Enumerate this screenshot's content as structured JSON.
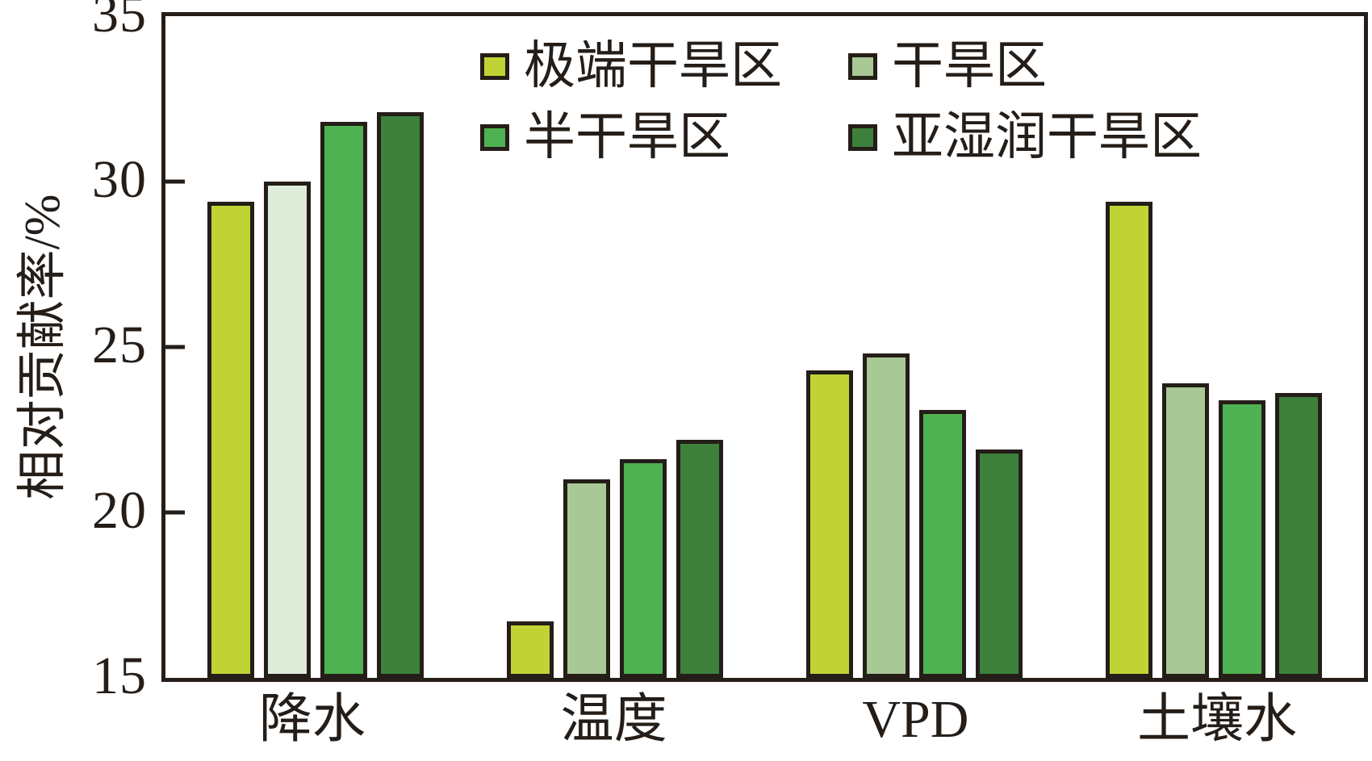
{
  "figure": {
    "background": "#ffffff",
    "axis_color": "#241d18",
    "text_color": "#241d18"
  },
  "chart_data": {
    "type": "bar",
    "title": "",
    "xlabel": "",
    "ylabel": "相对贡献率/%",
    "ylim": [
      15,
      35
    ],
    "yticks": [
      15,
      20,
      25,
      30,
      35
    ],
    "grid": false,
    "legend_position": "top-inside",
    "categories": [
      "降水",
      "温度",
      "VPD",
      "土壤水"
    ],
    "series": [
      {
        "name": "极端干旱区",
        "color": "#bfd434",
        "values": [
          29.4,
          16.7,
          24.3,
          29.4
        ]
      },
      {
        "name": "干旱区",
        "color": "#a8c996",
        "values": [
          30.0,
          21.0,
          24.8,
          23.9
        ]
      },
      {
        "name": "半干旱区",
        "color": "#4fb252",
        "values": [
          31.8,
          21.6,
          23.1,
          23.4
        ]
      },
      {
        "name": "亚湿润干旱区",
        "color": "#3d803c",
        "values": [
          32.1,
          22.2,
          21.9,
          23.6
        ]
      }
    ],
    "bar_fill_overrides": [
      {
        "category": "降水",
        "series": "干旱区",
        "color": "#e0ecda"
      }
    ]
  }
}
